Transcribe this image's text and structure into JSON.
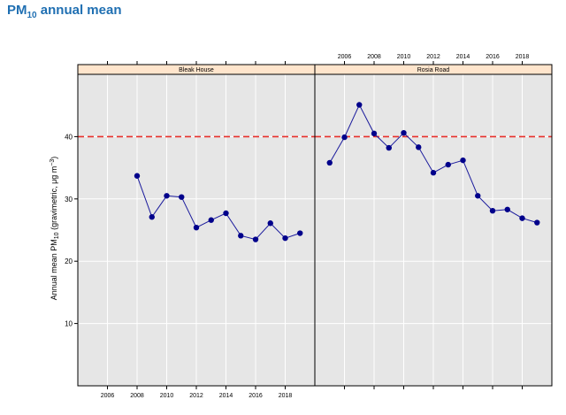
{
  "page": {
    "title_main": "PM",
    "title_sub": "10",
    "title_rest": " annual mean"
  },
  "chart_data": {
    "type": "line",
    "ylabel_prefix": "Annual mean PM",
    "ylabel_sub": "10",
    "ylabel_mid": " (gravimetric, μg m",
    "ylabel_sup": "−3",
    "ylabel_end": ")",
    "ylim": [
      0,
      50
    ],
    "yticks": [
      10,
      20,
      30,
      40
    ],
    "grid": true,
    "reference_line": {
      "y": 40,
      "color": "#e8302b"
    },
    "colors": {
      "line": "#1a1a9c",
      "point": "#00008b",
      "panel_bg": "#e6e6e6",
      "strip_bg": "#ffe5cc"
    },
    "panels": [
      {
        "name": "Bleak House",
        "xlim": [
          2004,
          2020
        ],
        "xticks": [
          2006,
          2008,
          2010,
          2012,
          2014,
          2016,
          2018
        ],
        "xaxis_side": "bottom",
        "points": [
          {
            "x": 2008,
            "y": 33.7
          },
          {
            "x": 2009,
            "y": 27.1
          },
          {
            "x": 2010,
            "y": 30.5
          },
          {
            "x": 2011,
            "y": 30.3
          },
          {
            "x": 2012,
            "y": 25.4
          },
          {
            "x": 2013,
            "y": 26.6
          },
          {
            "x": 2014,
            "y": 27.7
          },
          {
            "x": 2015,
            "y": 24.1
          },
          {
            "x": 2016,
            "y": 23.5
          },
          {
            "x": 2017,
            "y": 26.1
          },
          {
            "x": 2018,
            "y": 23.7
          },
          {
            "x": 2019,
            "y": 24.5
          }
        ]
      },
      {
        "name": "Rosia Road",
        "xlim": [
          2004,
          2020
        ],
        "xticks": [
          2006,
          2008,
          2010,
          2012,
          2014,
          2016,
          2018
        ],
        "xaxis_side": "top",
        "points": [
          {
            "x": 2005,
            "y": 35.8
          },
          {
            "x": 2006,
            "y": 39.9
          },
          {
            "x": 2007,
            "y": 45.1
          },
          {
            "x": 2008,
            "y": 40.5
          },
          {
            "x": 2009,
            "y": 38.2
          },
          {
            "x": 2010,
            "y": 40.6
          },
          {
            "x": 2011,
            "y": 38.3
          },
          {
            "x": 2012,
            "y": 34.2
          },
          {
            "x": 2013,
            "y": 35.5
          },
          {
            "x": 2014,
            "y": 36.2
          },
          {
            "x": 2015,
            "y": 30.5
          },
          {
            "x": 2016,
            "y": 28.1
          },
          {
            "x": 2017,
            "y": 28.3
          },
          {
            "x": 2018,
            "y": 26.9
          },
          {
            "x": 2019,
            "y": 26.2
          }
        ]
      }
    ]
  }
}
